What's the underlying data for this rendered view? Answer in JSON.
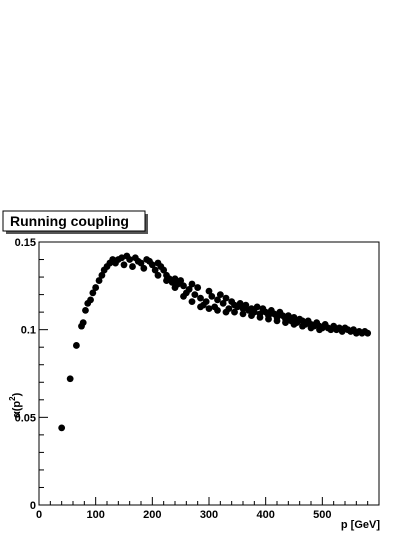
{
  "chart_data": {
    "type": "scatter",
    "title": "Running coupling",
    "xlabel": "p [GeV]",
    "ylabel_base": "α(p",
    "ylabel_sup": "2",
    "ylabel_close": ")",
    "xlim": [
      0,
      600
    ],
    "ylim": [
      0,
      0.15
    ],
    "x_tick_labels": [
      "0",
      "100",
      "200",
      "300",
      "400",
      "500"
    ],
    "x_tick_values": [
      0,
      100,
      200,
      300,
      400,
      500
    ],
    "y_tick_labels": [
      "0",
      "0.05",
      "0.1",
      "0.15"
    ],
    "y_tick_values": [
      0,
      0.05,
      0.1,
      0.15
    ],
    "marker_color": "#000000",
    "series": [
      {
        "points": [
          [
            40,
            0.044
          ],
          [
            55,
            0.072
          ],
          [
            66,
            0.091
          ],
          [
            75,
            0.102
          ],
          [
            78,
            0.104
          ],
          [
            82,
            0.111
          ],
          [
            86,
            0.115
          ],
          [
            91,
            0.117
          ],
          [
            95,
            0.121
          ],
          [
            100,
            0.124
          ],
          [
            106,
            0.128
          ],
          [
            111,
            0.131
          ],
          [
            115,
            0.134
          ],
          [
            120,
            0.136
          ],
          [
            125,
            0.138
          ],
          [
            130,
            0.14
          ],
          [
            135,
            0.138
          ],
          [
            140,
            0.14
          ],
          [
            146,
            0.141
          ],
          [
            150,
            0.137
          ],
          [
            155,
            0.142
          ],
          [
            160,
            0.14
          ],
          [
            165,
            0.136
          ],
          [
            170,
            0.141
          ],
          [
            175,
            0.139
          ],
          [
            180,
            0.138
          ],
          [
            185,
            0.135
          ],
          [
            190,
            0.14
          ],
          [
            195,
            0.139
          ],
          [
            200,
            0.137
          ],
          [
            205,
            0.134
          ],
          [
            210,
            0.131
          ],
          [
            215,
            0.136
          ],
          [
            220,
            0.134
          ],
          [
            225,
            0.131
          ],
          [
            230,
            0.129
          ],
          [
            235,
            0.127
          ],
          [
            240,
            0.124
          ],
          [
            245,
            0.126
          ],
          [
            250,
            0.128
          ],
          [
            255,
            0.125
          ],
          [
            260,
            0.121
          ],
          [
            265,
            0.123
          ],
          [
            270,
            0.126
          ],
          [
            275,
            0.12
          ],
          [
            280,
            0.124
          ],
          [
            285,
            0.118
          ],
          [
            290,
            0.114
          ],
          [
            295,
            0.116
          ],
          [
            300,
            0.122
          ],
          [
            305,
            0.119
          ],
          [
            310,
            0.113
          ],
          [
            315,
            0.117
          ],
          [
            320,
            0.12
          ],
          [
            325,
            0.115
          ],
          [
            330,
            0.118
          ],
          [
            335,
            0.112
          ],
          [
            340,
            0.116
          ],
          [
            345,
            0.114
          ],
          [
            350,
            0.113
          ],
          [
            355,
            0.115
          ],
          [
            360,
            0.112
          ],
          [
            365,
            0.114
          ],
          [
            370,
            0.111
          ],
          [
            375,
            0.112
          ],
          [
            380,
            0.11
          ],
          [
            385,
            0.113
          ],
          [
            390,
            0.109
          ],
          [
            395,
            0.112
          ],
          [
            400,
            0.11
          ],
          [
            405,
            0.108
          ],
          [
            410,
            0.111
          ],
          [
            415,
            0.109
          ],
          [
            420,
            0.107
          ],
          [
            425,
            0.11
          ],
          [
            430,
            0.108
          ],
          [
            435,
            0.106
          ],
          [
            440,
            0.108
          ],
          [
            445,
            0.105
          ],
          [
            450,
            0.107
          ],
          [
            455,
            0.104
          ],
          [
            460,
            0.106
          ],
          [
            465,
            0.105
          ],
          [
            470,
            0.103
          ],
          [
            475,
            0.105
          ],
          [
            480,
            0.103
          ],
          [
            485,
            0.102
          ],
          [
            490,
            0.104
          ],
          [
            495,
            0.102
          ],
          [
            500,
            0.101
          ],
          [
            505,
            0.103
          ],
          [
            510,
            0.101
          ],
          [
            515,
            0.1
          ],
          [
            520,
            0.102
          ],
          [
            525,
            0.1
          ],
          [
            530,
            0.101
          ],
          [
            535,
            0.099
          ],
          [
            540,
            0.101
          ],
          [
            545,
            0.1
          ],
          [
            550,
            0.099
          ],
          [
            555,
            0.1
          ],
          [
            560,
            0.098
          ],
          [
            565,
            0.099
          ],
          [
            570,
            0.098
          ],
          [
            575,
            0.099
          ],
          [
            580,
            0.098
          ],
          [
            210,
            0.138
          ],
          [
            225,
            0.128
          ],
          [
            240,
            0.129
          ],
          [
            255,
            0.119
          ],
          [
            270,
            0.116
          ],
          [
            285,
            0.113
          ],
          [
            300,
            0.112
          ],
          [
            315,
            0.111
          ],
          [
            330,
            0.11
          ],
          [
            345,
            0.11
          ],
          [
            360,
            0.109
          ],
          [
            375,
            0.108
          ],
          [
            390,
            0.107
          ],
          [
            405,
            0.106
          ],
          [
            420,
            0.105
          ],
          [
            435,
            0.104
          ],
          [
            450,
            0.103
          ],
          [
            465,
            0.102
          ],
          [
            480,
            0.101
          ],
          [
            495,
            0.1
          ]
        ]
      }
    ]
  }
}
